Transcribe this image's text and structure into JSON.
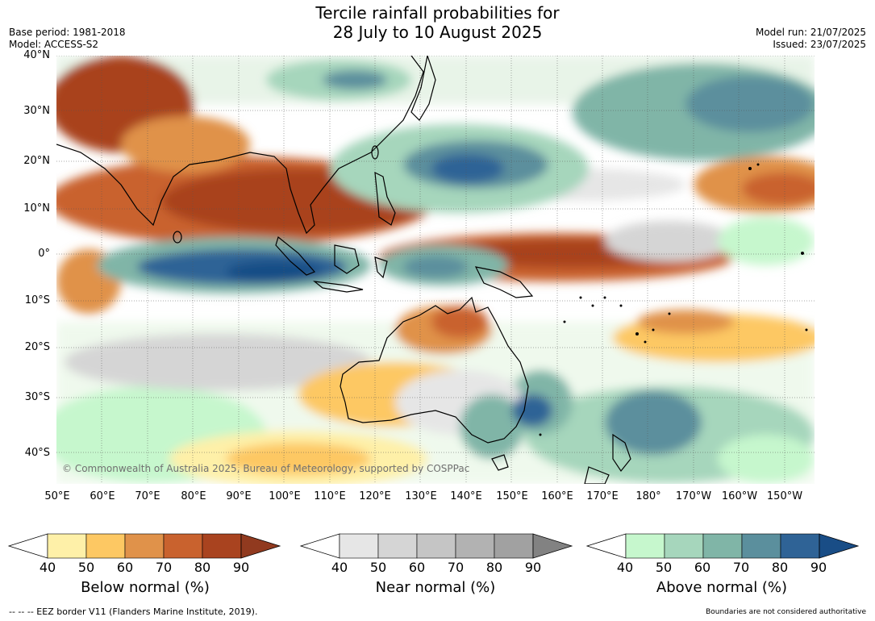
{
  "title": {
    "line1": "Tercile rainfall probabilities for",
    "line2": "28 July to 10 August 2025"
  },
  "meta": {
    "base_period": "Base period: 1981-2018",
    "model": "Model: ACCESS-S2",
    "model_run": "Model run: 21/07/2025",
    "issued": "Issued: 23/07/2025"
  },
  "map": {
    "latitude_labels": [
      "40°N",
      "30°N",
      "20°N",
      "10°N",
      "0°",
      "10°S",
      "20°S",
      "30°S",
      "40°S"
    ],
    "longitude_labels": [
      "50°E",
      "60°E",
      "70°E",
      "80°E",
      "90°E",
      "100°E",
      "110°E",
      "120°E",
      "130°E",
      "140°E",
      "150°E",
      "160°E",
      "170°E",
      "180°",
      "170°W",
      "160°W",
      "150°W"
    ],
    "copyright": "© Commonwealth of Australia 2025, Bureau of Meteorology, supported by COSPPac"
  },
  "colorbars": [
    {
      "name": "below",
      "title": "Below normal (%)",
      "ticks": [
        "40",
        "50",
        "60",
        "70",
        "80",
        "90"
      ],
      "colors": [
        "#fef0a8",
        "#fdc863",
        "#e0924a",
        "#c9622e",
        "#a9431f"
      ],
      "extend": "#913a1f"
    },
    {
      "name": "near",
      "title": "Near normal (%)",
      "ticks": [
        "40",
        "50",
        "60",
        "70",
        "80",
        "90"
      ],
      "colors": [
        "#e6e6e6",
        "#d5d5d5",
        "#c5c5c5",
        "#b2b2b2",
        "#a1a1a1"
      ],
      "extend": "#828282"
    },
    {
      "name": "above",
      "title": "Above normal (%)",
      "ticks": [
        "40",
        "50",
        "60",
        "70",
        "80",
        "90"
      ],
      "colors": [
        "#c6f7cd",
        "#a6d6bc",
        "#80b5a7",
        "#5b8f9d",
        "#2f6396"
      ],
      "extend": "#194d86"
    }
  ],
  "footer": {
    "eez": "--  --  -- EEZ border V11 (Flanders Marine Institute, 2019).",
    "boundaries": "Boundaries are not considered authoritative"
  }
}
